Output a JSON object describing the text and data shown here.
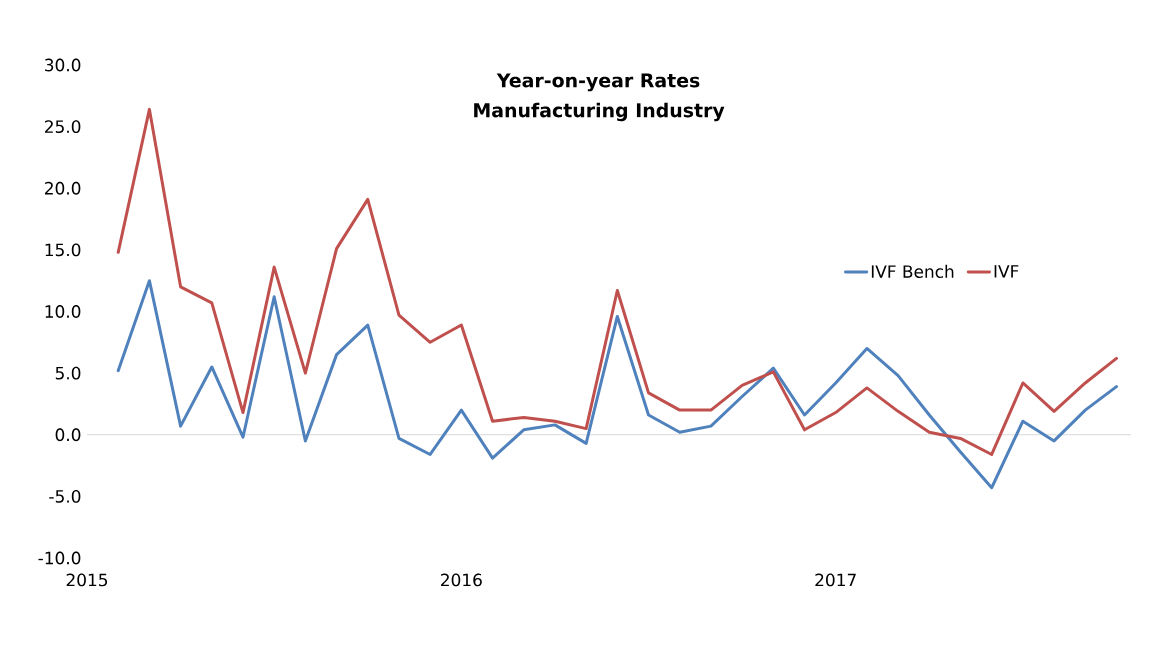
{
  "chart_data": {
    "type": "line",
    "title": "Year-on-year Rates",
    "subtitle": "Manufacturing Industry",
    "x": [
      "2015-02",
      "2015-03",
      "2015-04",
      "2015-05",
      "2015-06",
      "2015-07",
      "2015-08",
      "2015-09",
      "2015-10",
      "2015-11",
      "2015-12",
      "2016-01",
      "2016-02",
      "2016-03",
      "2016-04",
      "2016-05",
      "2016-06",
      "2016-07",
      "2016-08",
      "2016-09",
      "2016-10",
      "2016-11",
      "2016-12",
      "2017-01",
      "2017-02",
      "2017-03",
      "2017-04",
      "2017-05",
      "2017-06",
      "2017-07",
      "2017-08",
      "2017-09",
      "2017-10"
    ],
    "series": [
      {
        "name": "IVF Bench",
        "color": "#4f81bd",
        "values": [
          5.2,
          12.5,
          0.7,
          5.5,
          -0.2,
          11.2,
          -0.5,
          6.5,
          8.9,
          -0.3,
          -1.6,
          2.0,
          -1.9,
          0.4,
          0.8,
          -0.7,
          9.6,
          1.6,
          0.2,
          0.7,
          3.1,
          5.4,
          1.6,
          4.2,
          7.0,
          4.8,
          1.6,
          -1.4,
          -4.3,
          1.1,
          -0.5,
          2.0,
          3.9
        ]
      },
      {
        "name": "IVF",
        "color": "#c0504d",
        "values": [
          14.8,
          26.4,
          12.0,
          10.7,
          1.8,
          13.6,
          5.0,
          15.1,
          19.1,
          9.7,
          7.5,
          8.9,
          1.1,
          1.4,
          1.1,
          0.5,
          11.7,
          3.4,
          2.0,
          2.0,
          4.0,
          5.1,
          0.4,
          1.8,
          3.8,
          1.9,
          0.2,
          -0.3,
          -1.6,
          4.2,
          1.9,
          4.2,
          6.2
        ]
      }
    ],
    "xlim": [
      "2015-01",
      "2017-10-15"
    ],
    "xticks": [
      {
        "value": "2015-01",
        "label": "2015"
      },
      {
        "value": "2016-01",
        "label": "2016"
      },
      {
        "value": "2017-01",
        "label": "2017"
      }
    ],
    "ylim": [
      -10,
      30
    ],
    "yticks": [
      {
        "value": -10,
        "label": "-10.0"
      },
      {
        "value": -5,
        "label": "-5.0"
      },
      {
        "value": 0,
        "label": "0.0"
      },
      {
        "value": 5,
        "label": "5.0"
      },
      {
        "value": 10,
        "label": "10.0"
      },
      {
        "value": 15,
        "label": "15.0"
      },
      {
        "value": 20,
        "label": "20.0"
      },
      {
        "value": 25,
        "label": "25.0"
      },
      {
        "value": 30,
        "label": "30.0"
      }
    ],
    "ref_lines": [
      {
        "axis": "y",
        "value": 0,
        "color": "#d9d9d9"
      }
    ],
    "legend": "right",
    "marker": "none",
    "line_style": "solid"
  }
}
